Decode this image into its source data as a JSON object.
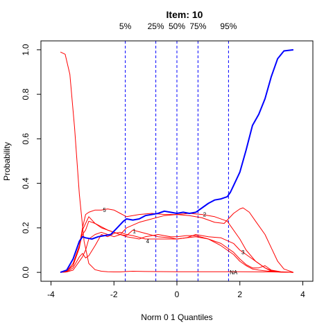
{
  "chart_data": {
    "type": "line",
    "title": "Item:  10",
    "xlabel": "Norm 0 1 Quantiles",
    "ylabel": "Probability",
    "xlim": [
      -4,
      4
    ],
    "ylim": [
      0,
      1
    ],
    "x_ticks": [
      -4,
      -2,
      0,
      2,
      4
    ],
    "y_ticks": [
      0,
      0.2,
      0.4,
      0.6,
      0.8,
      1
    ],
    "x_tick_labels": [
      "-4",
      "-2",
      "0",
      "2",
      "4"
    ],
    "y_tick_labels": [
      "0.0",
      "0.2",
      "0.4",
      "0.6",
      "0.8",
      "1.0"
    ],
    "grid": false,
    "quantiles": [
      {
        "label": "5%",
        "x": -1.64
      },
      {
        "label": "25%",
        "x": -0.67
      },
      {
        "label": "50%",
        "x": 0.0
      },
      {
        "label": "75%",
        "x": 0.67
      },
      {
        "label": "95%",
        "x": 1.64
      }
    ],
    "colors": {
      "options": "#ff0000",
      "key": "#0000ff",
      "quantile_lines": "#0000ff"
    },
    "series": [
      {
        "name": "NA",
        "role": "option",
        "label_at": [
          1.8,
          0.0
        ],
        "x": [
          -3.7,
          -3.55,
          -3.4,
          -3.25,
          -3.1,
          -2.95,
          -2.8,
          -2.6,
          -2.4,
          -2.2,
          -2.0,
          -1.8,
          -1.6,
          -1.4,
          -1.0,
          0.0,
          1.0,
          2.0,
          3.0,
          3.7
        ],
        "y": [
          0.99,
          0.98,
          0.89,
          0.65,
          0.35,
          0.14,
          0.04,
          0.012,
          0.005,
          0.003,
          0.002,
          0.002,
          0.004,
          0.005,
          0.004,
          0.003,
          0.003,
          0.003,
          0.002,
          0.0
        ]
      },
      {
        "name": "5",
        "role": "option",
        "label_at": [
          -2.3,
          0.28
        ],
        "x": [
          -3.7,
          -3.5,
          -3.3,
          -3.1,
          -3.0,
          -2.9,
          -2.8,
          -2.6,
          -2.4,
          -2.2,
          -2.0,
          -1.8,
          -1.6,
          -1.2,
          -0.8,
          -0.4,
          0.0,
          0.4,
          0.8,
          1.2,
          1.6,
          2.0,
          2.2,
          2.5,
          2.8,
          3.0,
          3.3,
          3.7
        ],
        "y": [
          0.0,
          0.005,
          0.03,
          0.12,
          0.2,
          0.26,
          0.27,
          0.28,
          0.28,
          0.285,
          0.28,
          0.265,
          0.25,
          0.26,
          0.265,
          0.26,
          0.26,
          0.265,
          0.26,
          0.25,
          0.23,
          0.15,
          0.1,
          0.05,
          0.02,
          0.008,
          0.002,
          0.0
        ]
      },
      {
        "name": "2",
        "role": "option",
        "label_at": [
          0.88,
          0.26
        ],
        "x": [
          -3.7,
          -3.5,
          -3.3,
          -3.1,
          -3.0,
          -2.9,
          -2.8,
          -2.6,
          -2.4,
          -2.2,
          -2.0,
          -1.8,
          -1.6,
          -1.2,
          -0.8,
          -0.4,
          0.0,
          0.4,
          0.8,
          1.2,
          1.5,
          1.8,
          2.0,
          2.1,
          2.3,
          2.5,
          2.8,
          3.0,
          3.2,
          3.4,
          3.7
        ],
        "y": [
          0.0,
          0.005,
          0.03,
          0.11,
          0.19,
          0.22,
          0.25,
          0.22,
          0.205,
          0.19,
          0.18,
          0.17,
          0.2,
          0.225,
          0.24,
          0.255,
          0.26,
          0.255,
          0.245,
          0.225,
          0.22,
          0.265,
          0.285,
          0.29,
          0.27,
          0.23,
          0.17,
          0.11,
          0.05,
          0.015,
          0.0
        ]
      },
      {
        "name": "1",
        "role": "option",
        "label_at": [
          -1.35,
          0.185
        ],
        "x": [
          -3.7,
          -3.5,
          -3.3,
          -3.1,
          -3.0,
          -2.9,
          -2.8,
          -2.6,
          -2.4,
          -2.2,
          -2.0,
          -1.8,
          -1.6,
          -1.4,
          -1.0,
          -0.6,
          -0.2,
          0.0,
          0.3,
          0.6,
          1.0,
          1.4,
          1.8,
          2.0,
          2.2,
          2.4,
          2.6,
          2.8,
          3.0,
          3.3,
          3.7
        ],
        "y": [
          0.0,
          0.005,
          0.04,
          0.12,
          0.17,
          0.19,
          0.23,
          0.22,
          0.2,
          0.19,
          0.18,
          0.17,
          0.165,
          0.19,
          0.175,
          0.16,
          0.155,
          0.15,
          0.155,
          0.16,
          0.15,
          0.13,
          0.09,
          0.06,
          0.035,
          0.02,
          0.02,
          0.03,
          0.01,
          0.003,
          0.0
        ]
      },
      {
        "name": "4",
        "role": "option",
        "label_at": [
          -0.93,
          0.14
        ],
        "x": [
          -3.7,
          -3.5,
          -3.3,
          -3.1,
          -3.0,
          -2.9,
          -2.8,
          -2.6,
          -2.4,
          -2.2,
          -2.0,
          -1.8,
          -1.6,
          -1.4,
          -1.2,
          -1.0,
          -0.6,
          -0.2,
          0.0,
          0.3,
          0.6,
          1.0,
          1.4,
          1.8,
          2.0,
          2.2,
          2.4,
          2.6,
          3.0,
          3.3,
          3.7
        ],
        "y": [
          0.0,
          0.002,
          0.01,
          0.05,
          0.07,
          0.1,
          0.15,
          0.17,
          0.18,
          0.17,
          0.16,
          0.17,
          0.16,
          0.155,
          0.15,
          0.16,
          0.17,
          0.16,
          0.16,
          0.165,
          0.165,
          0.15,
          0.12,
          0.08,
          0.05,
          0.03,
          0.015,
          0.01,
          0.004,
          0.001,
          0.0
        ]
      },
      {
        "name": "3",
        "role": "option",
        "label_at": [
          2.1,
          0.09
        ],
        "x": [
          -3.7,
          -3.5,
          -3.3,
          -3.1,
          -3.0,
          -2.9,
          -2.8,
          -2.6,
          -2.4,
          -2.2,
          -2.0,
          -1.8,
          -1.6,
          -1.4,
          -1.0,
          -0.6,
          -0.2,
          0.0,
          0.3,
          0.6,
          1.0,
          1.4,
          1.8,
          2.0,
          2.2,
          2.4,
          2.6,
          2.8,
          3.0,
          3.3,
          3.7
        ],
        "y": [
          0.0,
          0.002,
          0.02,
          0.07,
          0.085,
          0.065,
          0.075,
          0.12,
          0.17,
          0.16,
          0.175,
          0.18,
          0.17,
          0.165,
          0.15,
          0.15,
          0.15,
          0.15,
          0.155,
          0.17,
          0.16,
          0.155,
          0.13,
          0.1,
          0.08,
          0.06,
          0.04,
          0.02,
          0.005,
          0.001,
          0.0
        ]
      },
      {
        "name": "",
        "role": "key",
        "x": [
          -3.7,
          -3.5,
          -3.3,
          -3.1,
          -3.0,
          -2.9,
          -2.7,
          -2.5,
          -2.3,
          -2.1,
          -1.9,
          -1.7,
          -1.6,
          -1.4,
          -1.2,
          -1.0,
          -0.8,
          -0.6,
          -0.4,
          -0.2,
          0.0,
          0.2,
          0.4,
          0.6,
          0.8,
          1.0,
          1.2,
          1.4,
          1.6,
          1.7,
          1.8,
          2.0,
          2.2,
          2.4,
          2.6,
          2.8,
          3.0,
          3.2,
          3.4,
          3.7
        ],
        "y": [
          0.0,
          0.01,
          0.06,
          0.14,
          0.16,
          0.155,
          0.15,
          0.16,
          0.165,
          0.17,
          0.2,
          0.23,
          0.24,
          0.235,
          0.24,
          0.255,
          0.26,
          0.265,
          0.275,
          0.27,
          0.265,
          0.27,
          0.265,
          0.27,
          0.29,
          0.31,
          0.325,
          0.33,
          0.34,
          0.36,
          0.39,
          0.45,
          0.55,
          0.66,
          0.71,
          0.78,
          0.88,
          0.96,
          0.995,
          1.0
        ]
      }
    ]
  }
}
